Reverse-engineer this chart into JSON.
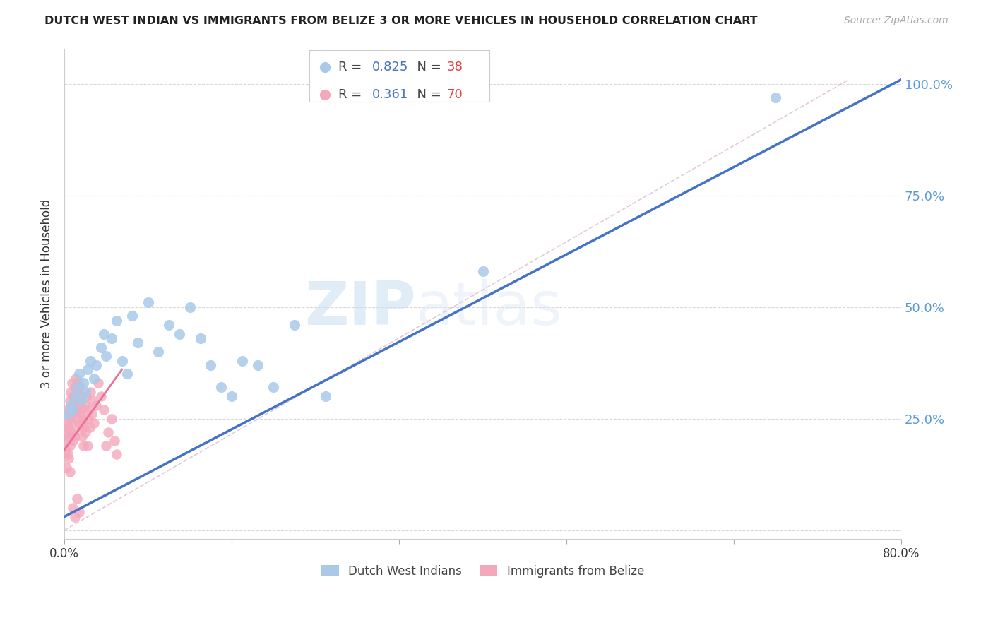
{
  "title": "DUTCH WEST INDIAN VS IMMIGRANTS FROM BELIZE 3 OR MORE VEHICLES IN HOUSEHOLD CORRELATION CHART",
  "source_text": "Source: ZipAtlas.com",
  "ylabel": "3 or more Vehicles in Household",
  "xlim": [
    0.0,
    0.8
  ],
  "ylim": [
    -0.02,
    1.08
  ],
  "right_ytick_vals": [
    0.25,
    0.5,
    0.75,
    1.0
  ],
  "right_yticklabels": [
    "25.0%",
    "50.0%",
    "75.0%",
    "100.0%"
  ],
  "legend_blue_label": "Dutch West Indians",
  "legend_pink_label": "Immigrants from Belize",
  "R_blue": 0.825,
  "N_blue": 38,
  "R_pink": 0.361,
  "N_pink": 70,
  "color_blue_scatter": "#aac9e8",
  "color_pink_scatter": "#f4a8bc",
  "color_blue_line": "#4472c4",
  "color_pink_line": "#e8709a",
  "color_right_axis": "#5b9bd5",
  "color_grid": "#d8d8d8",
  "background_color": "#ffffff",
  "watermark_zip": "ZIP",
  "watermark_atlas": "atlas",
  "blue_scatter_x": [
    0.003,
    0.006,
    0.008,
    0.01,
    0.012,
    0.014,
    0.016,
    0.018,
    0.02,
    0.022,
    0.025,
    0.028,
    0.03,
    0.035,
    0.038,
    0.04,
    0.045,
    0.05,
    0.055,
    0.06,
    0.065,
    0.07,
    0.08,
    0.09,
    0.1,
    0.11,
    0.12,
    0.13,
    0.14,
    0.15,
    0.16,
    0.17,
    0.185,
    0.2,
    0.22,
    0.25,
    0.4,
    0.68
  ],
  "blue_scatter_y": [
    0.26,
    0.28,
    0.27,
    0.3,
    0.32,
    0.35,
    0.29,
    0.33,
    0.31,
    0.36,
    0.38,
    0.34,
    0.37,
    0.41,
    0.44,
    0.39,
    0.43,
    0.47,
    0.38,
    0.35,
    0.48,
    0.42,
    0.51,
    0.4,
    0.46,
    0.44,
    0.5,
    0.43,
    0.37,
    0.32,
    0.3,
    0.38,
    0.37,
    0.32,
    0.46,
    0.3,
    0.58,
    0.97
  ],
  "pink_scatter_x": [
    0.001,
    0.001,
    0.002,
    0.002,
    0.002,
    0.003,
    0.003,
    0.003,
    0.004,
    0.004,
    0.004,
    0.005,
    0.005,
    0.005,
    0.005,
    0.006,
    0.006,
    0.006,
    0.007,
    0.007,
    0.007,
    0.008,
    0.008,
    0.008,
    0.009,
    0.009,
    0.01,
    0.01,
    0.01,
    0.011,
    0.011,
    0.012,
    0.012,
    0.013,
    0.013,
    0.014,
    0.014,
    0.015,
    0.015,
    0.016,
    0.016,
    0.017,
    0.017,
    0.018,
    0.018,
    0.019,
    0.02,
    0.02,
    0.021,
    0.022,
    0.022,
    0.023,
    0.024,
    0.025,
    0.026,
    0.027,
    0.028,
    0.03,
    0.032,
    0.035,
    0.038,
    0.04,
    0.042,
    0.045,
    0.048,
    0.05,
    0.008,
    0.01,
    0.012,
    0.014
  ],
  "pink_scatter_y": [
    0.22,
    0.18,
    0.24,
    0.2,
    0.14,
    0.27,
    0.23,
    0.17,
    0.26,
    0.21,
    0.16,
    0.29,
    0.25,
    0.19,
    0.13,
    0.31,
    0.27,
    0.22,
    0.33,
    0.28,
    0.24,
    0.3,
    0.26,
    0.2,
    0.28,
    0.22,
    0.32,
    0.27,
    0.21,
    0.34,
    0.29,
    0.31,
    0.25,
    0.33,
    0.27,
    0.3,
    0.24,
    0.32,
    0.26,
    0.29,
    0.23,
    0.27,
    0.21,
    0.25,
    0.19,
    0.23,
    0.28,
    0.22,
    0.3,
    0.25,
    0.19,
    0.27,
    0.23,
    0.31,
    0.26,
    0.29,
    0.24,
    0.28,
    0.33,
    0.3,
    0.27,
    0.19,
    0.22,
    0.25,
    0.2,
    0.17,
    0.05,
    0.03,
    0.07,
    0.04
  ],
  "blue_line_x": [
    0.0,
    0.8
  ],
  "blue_line_y": [
    0.03,
    1.01
  ],
  "pink_line_x": [
    0.0,
    0.055
  ],
  "pink_line_y": [
    0.18,
    0.36
  ],
  "diag_line_x": [
    0.0,
    0.75
  ],
  "diag_line_y": [
    0.0,
    1.01
  ]
}
